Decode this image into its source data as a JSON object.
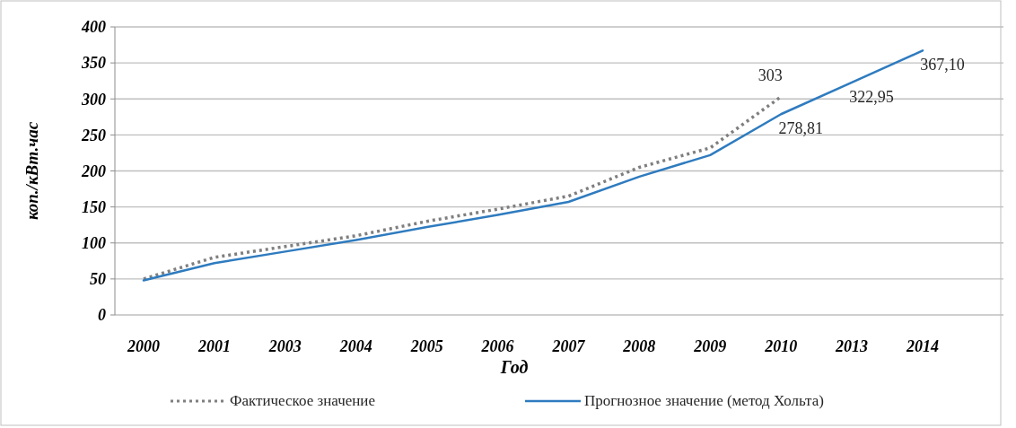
{
  "chart_data": {
    "type": "line",
    "xlabel": "Год",
    "ylabel": "коп./кВт.час",
    "categories": [
      "2000",
      "2001",
      "2003",
      "2004",
      "2005",
      "2006",
      "2007",
      "2008",
      "2009",
      "2010",
      "2013",
      "2014"
    ],
    "ylim": [
      0,
      400
    ],
    "yticks": [
      0,
      50,
      100,
      150,
      200,
      250,
      300,
      350,
      400
    ],
    "grid": "y",
    "legend": "bottom",
    "marker": "none",
    "series": [
      {
        "name": "Фактическое значение",
        "color": "#7f7f7f",
        "line_style": "dotted",
        "values": [
          50,
          80,
          95,
          110,
          130,
          147,
          165,
          205,
          232,
          303,
          null,
          null
        ],
        "value_labels": [
          null,
          null,
          null,
          null,
          null,
          null,
          null,
          null,
          null,
          "303",
          null,
          null
        ]
      },
      {
        "name": "Прогнозное значение (метод Хольта)",
        "color": "#2e7bbf",
        "line_style": "solid",
        "values": [
          48,
          72,
          88,
          104,
          122,
          139,
          157,
          192,
          222,
          278.81,
          322.95,
          367.1
        ],
        "value_labels": [
          null,
          null,
          null,
          null,
          null,
          null,
          null,
          null,
          null,
          "278,81",
          "322,95",
          "367,10"
        ]
      }
    ]
  }
}
